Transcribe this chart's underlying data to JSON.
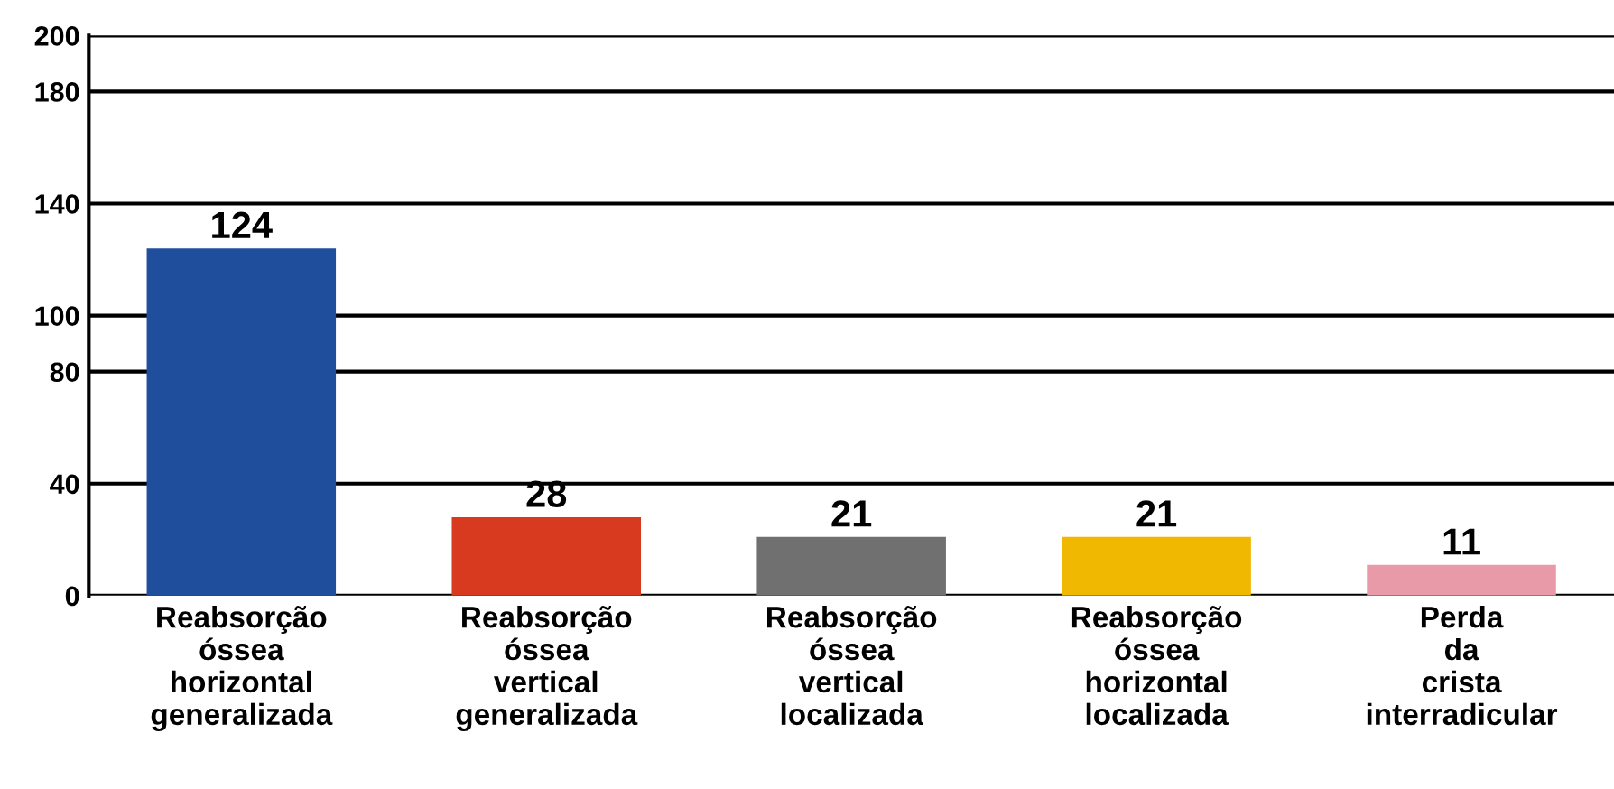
{
  "chart_data": {
    "type": "bar",
    "categories": [
      "Reabsorção\nóssea\nhorizontal\ngeneralizada",
      "Reabsorção\nóssea\nvertical\ngeneralizada",
      "Reabsorção\nóssea\nvertical\nlocalizada",
      "Reabsorção\nóssea\nhorizontal\nlocalizada",
      "Perda\nda\ncrista\ninterradicular"
    ],
    "values": [
      124,
      28,
      21,
      21,
      11
    ],
    "colors": [
      "#1f4e9c",
      "#d83a20",
      "#707070",
      "#f0b800",
      "#e89aa8"
    ],
    "ylim": [
      0,
      200
    ],
    "yticks": [
      0,
      40,
      80,
      100,
      140,
      180,
      200
    ],
    "grid": "y",
    "data_labels": true,
    "legend": false
  }
}
